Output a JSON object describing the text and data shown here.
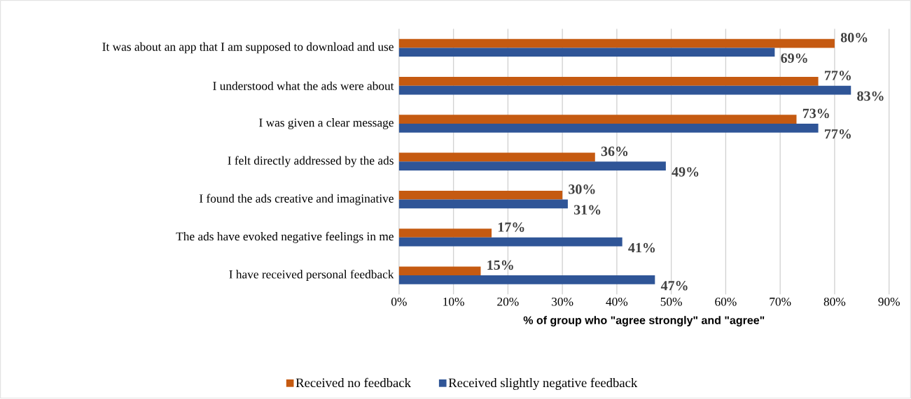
{
  "chart_data": {
    "type": "bar",
    "orientation": "horizontal",
    "categories": [
      "It was about an app that I am supposed to download and use",
      "I  understood what the ads were about",
      "I was given a clear message",
      "I felt directly addressed by the ads",
      "I found the ads creative and imaginative",
      "The ads have evoked negative feelings in me",
      "I have received personal feedback"
    ],
    "series": [
      {
        "name": "Received no feedback",
        "color": "#c55a11",
        "values": [
          80,
          77,
          73,
          36,
          30,
          17,
          15
        ],
        "value_labels": [
          "80%",
          "77%",
          "73%",
          "36%",
          "30%",
          "17%",
          "15%"
        ]
      },
      {
        "name": "Received slightly negative feedback",
        "color": "#2f5597",
        "values": [
          69,
          83,
          77,
          49,
          31,
          41,
          47
        ],
        "value_labels": [
          "69%",
          "83%",
          "77%",
          "49%",
          "31%",
          "41%",
          "47%"
        ]
      }
    ],
    "xlabel": "% of group who \"agree strongly\" and \"agree\"",
    "xlim": [
      0,
      90
    ],
    "xticks": [
      {
        "value": 0,
        "label": "0%"
      },
      {
        "value": 10,
        "label": "10%"
      },
      {
        "value": 20,
        "label": "20%"
      },
      {
        "value": 30,
        "label": "30%"
      },
      {
        "value": 40,
        "label": "40%"
      },
      {
        "value": 50,
        "label": "50%"
      },
      {
        "value": 60,
        "label": "60%"
      },
      {
        "value": 70,
        "label": "70%"
      },
      {
        "value": 80,
        "label": "80%"
      },
      {
        "value": 90,
        "label": "90%"
      }
    ],
    "grid": "x",
    "legend": "bottom"
  }
}
